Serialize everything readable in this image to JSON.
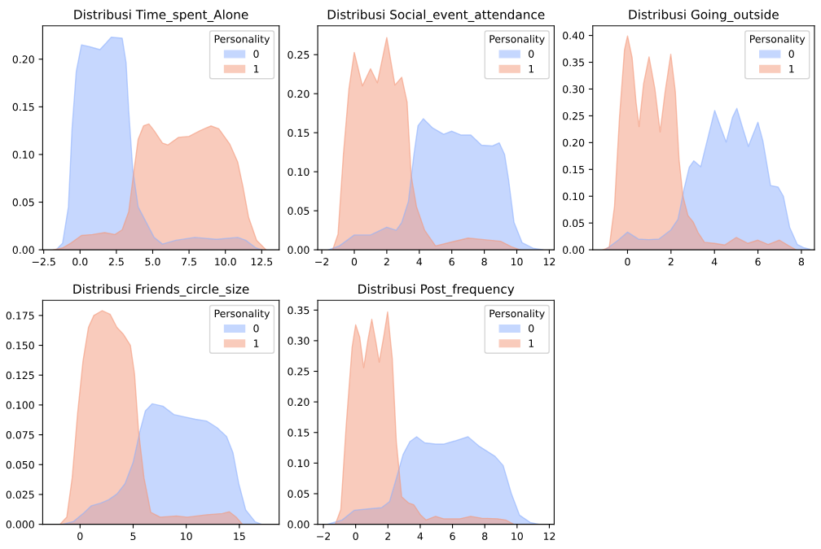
{
  "chart_data": [
    {
      "type": "area",
      "title": "Distribusi Time_spent_Alone",
      "legend_title": "Personality",
      "legend": "top right",
      "xlim": [
        -2.57,
        13.7
      ],
      "ylim": [
        0,
        0.235
      ],
      "xticks": [
        {
          "value": -2.5,
          "label": "−2.5"
        },
        {
          "value": 0,
          "label": "0.0"
        },
        {
          "value": 2.5,
          "label": "2.5"
        },
        {
          "value": 5,
          "label": "5.0"
        },
        {
          "value": 7.5,
          "label": "7.5"
        },
        {
          "value": 10,
          "label": "10.0"
        },
        {
          "value": 12.5,
          "label": "12.5"
        }
      ],
      "yticks": [
        {
          "value": 0,
          "label": "0.00"
        },
        {
          "value": 0.05,
          "label": "0.05"
        },
        {
          "value": 0.1,
          "label": "0.10"
        },
        {
          "value": 0.15,
          "label": "0.15"
        },
        {
          "value": 0.2,
          "label": "0.20"
        }
      ],
      "series": [
        {
          "name": "0",
          "color": "#8db0fe",
          "x": [
            -1.65,
            -1.2,
            -0.8,
            -0.55,
            -0.26,
            0.1,
            0.67,
            1.37,
            1.8,
            2.15,
            2.9,
            3.17,
            3.35,
            3.63,
            4.0,
            4.55,
            5.1,
            5.67,
            6.6,
            7.9,
            9.4,
            10.85,
            11.4,
            12.1,
            12.5
          ],
          "values": [
            0,
            0.007,
            0.045,
            0.127,
            0.187,
            0.215,
            0.213,
            0.21,
            0.217,
            0.223,
            0.222,
            0.196,
            0.146,
            0.084,
            0.045,
            0.029,
            0.013,
            0.006,
            0.01,
            0.013,
            0.011,
            0.013,
            0.01,
            0.002,
            0
          ]
        },
        {
          "name": "1",
          "color": "#f4987a",
          "x": [
            -1.83,
            -1.2,
            -0.63,
            0.1,
            0.85,
            1.7,
            2.4,
            2.9,
            3.35,
            3.72,
            4.0,
            4.37,
            4.74,
            5.1,
            5.67,
            6.04,
            6.78,
            7.5,
            8.26,
            9.0,
            9.55,
            10.3,
            10.85,
            11.2,
            11.6,
            12.15,
            12.8
          ],
          "values": [
            0,
            0.002,
            0.007,
            0.015,
            0.016,
            0.018,
            0.016,
            0.021,
            0.04,
            0.084,
            0.116,
            0.13,
            0.132,
            0.125,
            0.112,
            0.11,
            0.118,
            0.119,
            0.125,
            0.13,
            0.127,
            0.111,
            0.092,
            0.067,
            0.034,
            0.01,
            0
          ]
        }
      ]
    },
    {
      "type": "area",
      "title": "Distribusi Social_event_attendance",
      "legend_title": "Personality",
      "legend": "top right",
      "xlim": [
        -2.25,
        12.3
      ],
      "ylim": [
        0,
        0.287
      ],
      "xticks": [
        {
          "value": -2,
          "label": "−2"
        },
        0,
        2,
        4,
        6,
        8,
        10,
        12
      ],
      "yticks": [
        {
          "value": 0,
          "label": "0.00"
        },
        {
          "value": 0.05,
          "label": "0.05"
        },
        {
          "value": 0.1,
          "label": "0.10"
        },
        {
          "value": 0.15,
          "label": "0.15"
        },
        {
          "value": 0.2,
          "label": "0.20"
        },
        {
          "value": 0.25,
          "label": "0.25"
        }
      ],
      "series": [
        {
          "name": "0",
          "color": "#8db0fe",
          "x": [
            -1.58,
            -0.92,
            0,
            1.0,
            2.0,
            2.58,
            2.92,
            3.33,
            3.67,
            3.92,
            4.25,
            4.83,
            5.5,
            6.0,
            6.58,
            7.17,
            7.83,
            8.5,
            8.92,
            9.25,
            9.5,
            9.83,
            10.33,
            11.0,
            11.6
          ],
          "values": [
            0,
            0.005,
            0.019,
            0.019,
            0.029,
            0.025,
            0.035,
            0.062,
            0.122,
            0.159,
            0.168,
            0.156,
            0.148,
            0.152,
            0.147,
            0.147,
            0.134,
            0.133,
            0.137,
            0.122,
            0.089,
            0.035,
            0.009,
            0.002,
            0
          ]
        },
        {
          "name": "1",
          "color": "#f4987a",
          "x": [
            -1.33,
            -1.0,
            -0.67,
            -0.33,
            0,
            0.5,
            1.0,
            1.42,
            2.0,
            2.5,
            2.92,
            3.25,
            3.5,
            3.83,
            4.33,
            5.0,
            6.0,
            7.0,
            8.0,
            9.0,
            9.67,
            10.2
          ],
          "values": [
            0,
            0.02,
            0.122,
            0.206,
            0.253,
            0.21,
            0.232,
            0.214,
            0.272,
            0.211,
            0.221,
            0.189,
            0.095,
            0.055,
            0.025,
            0.005,
            0.01,
            0.015,
            0.013,
            0.011,
            0.004,
            0
          ]
        }
      ]
    },
    {
      "type": "area",
      "title": "Distribusi Going_outside",
      "legend_title": "Personality",
      "legend": "top right",
      "xlim": [
        -1.6,
        8.6
      ],
      "ylim": [
        0,
        0.418
      ],
      "xticks": [
        0,
        2,
        4,
        6,
        8
      ],
      "yticks": [
        {
          "value": 0,
          "label": "0.00"
        },
        {
          "value": 0.05,
          "label": "0.05"
        },
        {
          "value": 0.1,
          "label": "0.10"
        },
        {
          "value": 0.15,
          "label": "0.15"
        },
        {
          "value": 0.2,
          "label": "0.20"
        },
        {
          "value": 0.25,
          "label": "0.25"
        },
        {
          "value": 0.3,
          "label": "0.30"
        },
        {
          "value": 0.35,
          "label": "0.35"
        },
        {
          "value": 0.4,
          "label": "0.40"
        }
      ],
      "series": [
        {
          "name": "0",
          "color": "#8db0fe",
          "x": [
            -1.02,
            -0.43,
            0,
            0.5,
            0.97,
            1.44,
            1.99,
            2.32,
            2.61,
            2.84,
            3.05,
            3.37,
            3.66,
            4.01,
            4.3,
            4.54,
            4.83,
            5.03,
            5.3,
            5.56,
            6.0,
            6.23,
            6.58,
            6.93,
            7.17,
            7.46,
            7.81,
            8.1,
            8.4
          ],
          "values": [
            0,
            0.018,
            0.033,
            0.02,
            0.019,
            0.02,
            0.037,
            0.057,
            0.115,
            0.154,
            0.166,
            0.155,
            0.203,
            0.26,
            0.227,
            0.201,
            0.247,
            0.264,
            0.227,
            0.193,
            0.238,
            0.203,
            0.12,
            0.117,
            0.1,
            0.042,
            0.01,
            0.004,
            0.001
          ]
        },
        {
          "name": "1",
          "color": "#f4987a",
          "x": [
            -1.13,
            -0.84,
            -0.6,
            -0.37,
            -0.14,
            0,
            0.21,
            0.39,
            0.53,
            0.74,
            0.99,
            1.26,
            1.5,
            1.73,
            1.99,
            2.2,
            2.37,
            2.55,
            2.78,
            3.02,
            3.25,
            3.54,
            4.01,
            4.48,
            5.0,
            5.53,
            6.0,
            6.47,
            6.99,
            7.4,
            7.75
          ],
          "values": [
            0,
            0.005,
            0.081,
            0.247,
            0.373,
            0.399,
            0.359,
            0.276,
            0.23,
            0.31,
            0.36,
            0.3,
            0.22,
            0.295,
            0.365,
            0.295,
            0.169,
            0.1,
            0.064,
            0.052,
            0.032,
            0.014,
            0.012,
            0.009,
            0.023,
            0.012,
            0.018,
            0.01,
            0.018,
            0.008,
            0
          ]
        }
      ]
    },
    {
      "type": "area",
      "title": "Distribusi Friends_circle_size",
      "legend_title": "Personality",
      "legend": "top right",
      "xlim": [
        -3.52,
        18.75
      ],
      "ylim": [
        0,
        0.1877
      ],
      "xticks": [
        0,
        5,
        10,
        15
      ],
      "yticks": [
        {
          "value": 0,
          "label": "0.000"
        },
        {
          "value": 0.025,
          "label": "0.025"
        },
        {
          "value": 0.05,
          "label": "0.050"
        },
        {
          "value": 0.075,
          "label": "0.075"
        },
        {
          "value": 0.1,
          "label": "0.100"
        },
        {
          "value": 0.125,
          "label": "0.125"
        },
        {
          "value": 0.15,
          "label": "0.150"
        },
        {
          "value": 0.175,
          "label": "0.175"
        }
      ],
      "series": [
        {
          "name": "0",
          "color": "#8db0fe",
          "x": [
            -1.63,
            -0.61,
            0.41,
            1.05,
            1.94,
            2.7,
            3.47,
            4.23,
            5.0,
            5.64,
            6.15,
            6.79,
            7.8,
            8.83,
            9.85,
            10.87,
            11.9,
            12.9,
            13.8,
            14.4,
            14.95,
            15.6,
            16.5,
            17.1
          ],
          "values": [
            0,
            0.0024,
            0.01,
            0.0155,
            0.0177,
            0.0206,
            0.0254,
            0.034,
            0.052,
            0.078,
            0.095,
            0.101,
            0.099,
            0.092,
            0.09,
            0.088,
            0.0866,
            0.081,
            0.0735,
            0.06,
            0.034,
            0.012,
            0.002,
            0
          ]
        },
        {
          "name": "1",
          "color": "#f4987a",
          "x": [
            -1.9,
            -1.25,
            -0.74,
            -0.23,
            0.28,
            0.79,
            1.3,
            2.07,
            2.83,
            3.47,
            4.1,
            4.74,
            5.13,
            5.51,
            6.02,
            6.66,
            7.55,
            9.08,
            10.1,
            11.9,
            13.4,
            14.06,
            14.7,
            15.3
          ],
          "values": [
            0,
            0.006,
            0.039,
            0.093,
            0.137,
            0.165,
            0.175,
            0.179,
            0.176,
            0.165,
            0.159,
            0.15,
            0.126,
            0.078,
            0.039,
            0.01,
            0.006,
            0.007,
            0.006,
            0.008,
            0.009,
            0.0105,
            0.006,
            0
          ]
        }
      ]
    },
    {
      "type": "area",
      "title": "Distribusi Post_frequency",
      "legend_title": "Personality",
      "legend": "top right",
      "xlim": [
        -2.35,
        12.3
      ],
      "ylim": [
        0,
        0.366
      ],
      "xticks": [
        {
          "value": -2,
          "label": "−2"
        },
        0,
        2,
        4,
        6,
        8,
        10,
        12
      ],
      "yticks": [
        {
          "value": 0,
          "label": "0.00"
        },
        {
          "value": 0.05,
          "label": "0.05"
        },
        {
          "value": 0.1,
          "label": "0.10"
        },
        {
          "value": 0.15,
          "label": "0.15"
        },
        {
          "value": 0.2,
          "label": "0.20"
        },
        {
          "value": 0.25,
          "label": "0.25"
        },
        {
          "value": 0.3,
          "label": "0.30"
        },
        {
          "value": 0.35,
          "label": "0.35"
        }
      ],
      "series": [
        {
          "name": "0",
          "color": "#8db0fe",
          "x": [
            -1.76,
            -0.84,
            -0.08,
            0.76,
            1.6,
            2.1,
            2.52,
            2.94,
            3.36,
            3.78,
            4.28,
            4.95,
            5.45,
            6.12,
            6.96,
            7.63,
            8.64,
            9.14,
            9.65,
            10.15,
            10.82,
            11.33
          ],
          "values": [
            0,
            0.007,
            0.023,
            0.025,
            0.027,
            0.037,
            0.075,
            0.114,
            0.135,
            0.143,
            0.133,
            0.131,
            0.131,
            0.136,
            0.143,
            0.128,
            0.111,
            0.096,
            0.05,
            0.015,
            0.003,
            0
          ]
        },
        {
          "name": "1",
          "color": "#f4987a",
          "x": [
            -1.26,
            -0.92,
            -0.59,
            -0.22,
            0,
            0.25,
            0.5,
            0.76,
            1.0,
            1.26,
            1.46,
            1.76,
            1.98,
            2.27,
            2.52,
            2.85,
            3.27,
            3.6,
            4.03,
            4.36,
            4.95,
            5.45,
            6.46,
            7.13,
            7.8,
            8.8,
            9.3,
            9.8
          ],
          "values": [
            0,
            0.024,
            0.16,
            0.289,
            0.326,
            0.306,
            0.256,
            0.301,
            0.335,
            0.297,
            0.265,
            0.31,
            0.347,
            0.271,
            0.135,
            0.045,
            0.035,
            0.032,
            0.015,
            0.007,
            0.013,
            0.009,
            0.009,
            0.013,
            0.01,
            0.009,
            0.007,
            0
          ]
        }
      ]
    }
  ]
}
